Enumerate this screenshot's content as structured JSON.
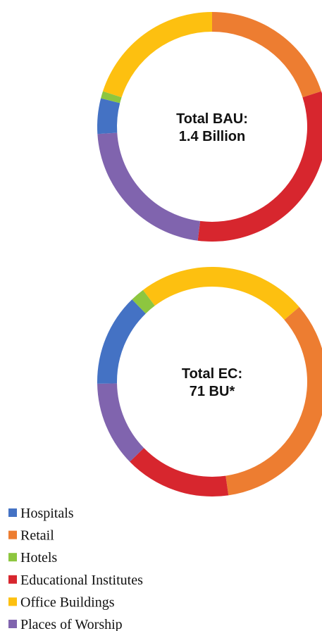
{
  "chart_data": [
    {
      "type": "pie",
      "categories": [
        "Hospitals",
        "Retail",
        "Hotels",
        "Educational Institutes",
        "Office Buildings",
        "Places of Worship"
      ],
      "values": [
        5,
        20,
        1,
        32,
        20,
        22
      ],
      "colors": [
        "#4472c4",
        "#ed7d31",
        "#8dc63f",
        "#d7262e",
        "#fdc010",
        "#8064ae"
      ],
      "center_label": [
        "Total BAU:",
        "1.4 Billion"
      ]
    },
    {
      "type": "pie",
      "values": [
        13,
        34,
        2,
        15,
        24,
        12
      ],
      "colors": [
        "#4472c4",
        "#ed7d31",
        "#8dc63f",
        "#d7262e",
        "#fdc010",
        "#8064ae"
      ],
      "center_label": [
        "Total EC:",
        "71 BU*"
      ]
    }
  ]
}
